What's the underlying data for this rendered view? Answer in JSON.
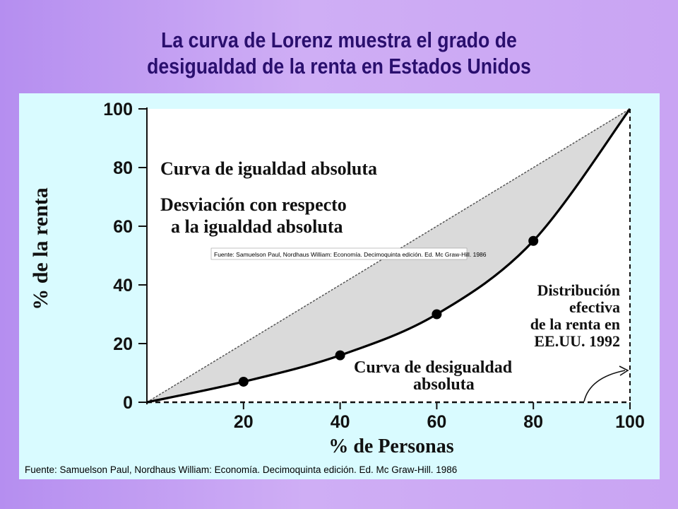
{
  "slide": {
    "title_line1": "La curva de Lorenz muestra el grado de",
    "title_line2": "desigualdad de la renta en Estados Unidos"
  },
  "chart_data": {
    "type": "line",
    "xlabel": "% de Personas",
    "ylabel": "% de la renta",
    "xlim": [
      0,
      100
    ],
    "ylim": [
      0,
      100
    ],
    "x_ticks": [
      "20",
      "40",
      "60",
      "80",
      "100"
    ],
    "y_ticks": [
      "0",
      "20",
      "40",
      "60",
      "80",
      "100"
    ],
    "grid": false,
    "series": [
      {
        "x": [
          0,
          100
        ],
        "y": [
          0,
          100
        ]
      },
      {
        "x": [
          0,
          20,
          40,
          60,
          80,
          100
        ],
        "y": [
          0,
          7,
          16,
          30,
          55,
          100
        ]
      }
    ],
    "markers": {
      "x": [
        20,
        40,
        60,
        80
      ],
      "y": [
        7,
        16,
        30,
        55
      ]
    },
    "annotations": {
      "equality": "Curva de igualdad absoluta",
      "deviation_line1": "Desviación con respecto",
      "deviation_line2": "a la igualdad absoluta",
      "inner_caption": "Fuente: Samuelson Paul, Nordhaus William: Economía. Decimoquinta edición. Ed. Mc Graw-Hill. 1986",
      "distribution_line1": "Distribución",
      "distribution_line2": "efectiva",
      "distribution_line3": "de la renta en",
      "distribution_line4": "EE.UU. 1992",
      "inequality_line1": "Curva de desigualdad",
      "inequality_line2": "absoluta"
    },
    "source": "Fuente: Samuelson Paul, Nordhaus William: Economía. Decimoquinta edición. Ed. Mc Graw-Hill. 1986"
  },
  "colors": {
    "plot_background": "#ffffff",
    "figure_background": "#d9fbff",
    "shaded_area": "#dadada",
    "title": "#2a0f6e"
  }
}
